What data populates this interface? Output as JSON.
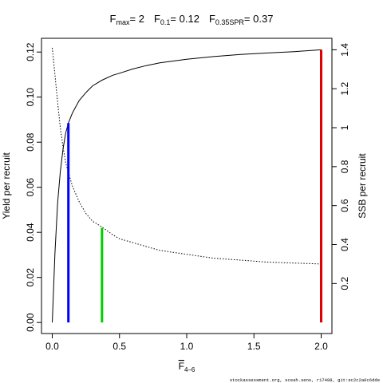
{
  "chart_data": {
    "type": "line",
    "title": {
      "fmax_sym": "F",
      "fmax_sub": "max",
      "fmax_val": "= 2",
      "f01_sym": "F",
      "f01_sub": "0.1",
      "f01_val": "= 0.12",
      "fspr_sym": "F",
      "fspr_sub": "0.35SPR",
      "fspr_val": "= 0.37"
    },
    "xlabel": {
      "sym": "F",
      "sub": "4–6"
    },
    "ylabel_left": "Yield per recruit",
    "ylabel_right": "SSB per recruit",
    "xlim": [
      -0.08,
      2.08
    ],
    "ylim_left": [
      -0.0049,
      0.1261
    ],
    "ylim_right": [
      -0.05667,
      1.4589
    ],
    "x_ticks": [
      0,
      0.5,
      1,
      1.5,
      2
    ],
    "x_tick_labels": [
      "0.0",
      "0.5",
      "1.0",
      "1.5",
      "2.0"
    ],
    "y_left_ticks": [
      0,
      0.02,
      0.04,
      0.06,
      0.08,
      0.1,
      0.12
    ],
    "y_left_tick_labels": [
      "0.00",
      "0.02",
      "0.04",
      "0.06",
      "0.08",
      "0.10",
      "0.12"
    ],
    "y_right_ticks": [
      0.2,
      0.4,
      0.6,
      0.8,
      1.0,
      1.2,
      1.4
    ],
    "y_right_tick_labels": [
      "0.2",
      "0.4",
      "0.6",
      "0.8",
      "1",
      "1.2",
      "1.4"
    ],
    "series": [
      {
        "axis": "left",
        "style": "solid",
        "color": "#000000",
        "x": [
          0,
          0.02,
          0.04,
          0.06,
          0.08,
          0.1,
          0.12,
          0.15,
          0.2,
          0.25,
          0.3,
          0.37,
          0.45,
          0.5,
          0.6,
          0.7,
          0.8,
          0.9,
          1.0,
          1.2,
          1.4,
          1.6,
          1.8,
          2.0
        ],
        "y": [
          0,
          0.031,
          0.053,
          0.067,
          0.077,
          0.084,
          0.0885,
          0.093,
          0.0985,
          0.102,
          0.105,
          0.1075,
          0.1097,
          0.1106,
          0.1125,
          0.114,
          0.1152,
          0.116,
          0.1168,
          0.118,
          0.1189,
          0.1196,
          0.1202,
          0.121
        ]
      },
      {
        "axis": "right",
        "style": "dotted",
        "color": "#000000",
        "x": [
          0,
          0.02,
          0.04,
          0.06,
          0.08,
          0.1,
          0.12,
          0.15,
          0.2,
          0.25,
          0.3,
          0.37,
          0.45,
          0.5,
          0.6,
          0.7,
          0.8,
          0.9,
          1.0,
          1.2,
          1.4,
          1.6,
          1.8,
          2.0
        ],
        "y": [
          1.41,
          1.27,
          1.13,
          1.0,
          0.9,
          0.82,
          0.77,
          0.7,
          0.62,
          0.56,
          0.52,
          0.49,
          0.45,
          0.43,
          0.41,
          0.39,
          0.37,
          0.36,
          0.35,
          0.33,
          0.32,
          0.31,
          0.305,
          0.3
        ]
      }
    ],
    "reference_lines": [
      {
        "name": "F0.1",
        "x": 0.12,
        "y_left": 0.0885,
        "color": "#0000ff"
      },
      {
        "name": "F0.35SPR",
        "x": 0.37,
        "y_left": 0.042,
        "color": "#00cc00"
      },
      {
        "name": "Fmax",
        "x": 2.0,
        "y_left": 0.121,
        "color": "#dd0000"
      }
    ],
    "grid": false,
    "legend": "none"
  },
  "footer": {
    "caption": "stockassessment.org, sceah.sens, r17488, git:ec2c2a0c6dde"
  }
}
